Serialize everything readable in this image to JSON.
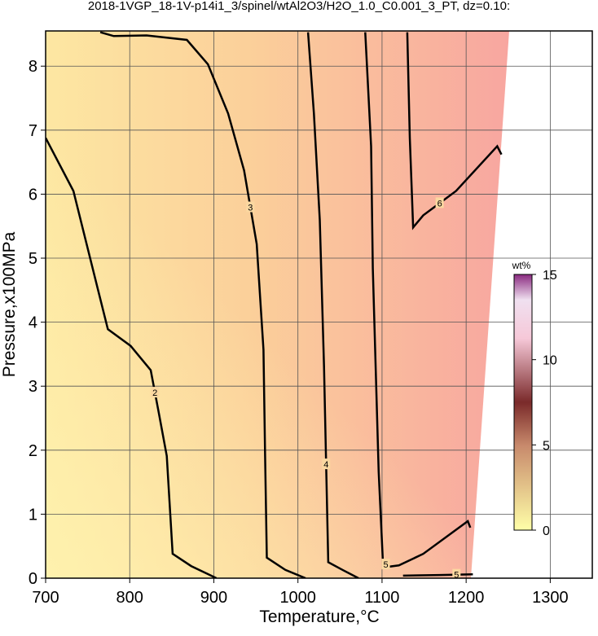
{
  "chart_data": {
    "type": "contour",
    "title": "2018-1VGP_18-1V-p14i1_3/spinel/wtAl2O3/H2O_1.0_C0.001_3_PT, dz=0.10:",
    "xlabel": "Temperature,°C",
    "ylabel": "Pressure,x100MPa",
    "xlim": [
      700,
      1350
    ],
    "ylim": [
      0,
      8.55
    ],
    "xticks": [
      700,
      800,
      900,
      1000,
      1100,
      1200,
      1300
    ],
    "yticks": [
      0,
      1,
      2,
      3,
      4,
      5,
      6,
      7,
      8
    ],
    "grid": true,
    "colorbar": {
      "label": "wt%",
      "lim": [
        0,
        15
      ],
      "ticks": [
        0,
        5,
        10,
        15
      ]
    },
    "contours": [
      {
        "label": "2",
        "level": 2,
        "x": [
          700,
          733,
          762,
          774,
          801,
          825,
          835,
          844,
          851,
          873,
          903
        ],
        "y": [
          6.88,
          6.05,
          4.52,
          3.89,
          3.63,
          3.25,
          2.55,
          1.91,
          0.38,
          0.19,
          0
        ]
      },
      {
        "label": "3",
        "level": 3,
        "x": [
          765,
          781,
          820,
          868,
          893,
          917,
          936,
          951,
          959,
          961,
          963,
          985,
          1009
        ],
        "y": [
          8.53,
          8.47,
          8.48,
          8.41,
          8.03,
          7.26,
          6.37,
          5.22,
          3.57,
          1.91,
          0.32,
          0.13,
          0
        ]
      },
      {
        "label": "4",
        "level": 4,
        "x": [
          1012,
          1019,
          1026,
          1031,
          1036,
          1053,
          1072
        ],
        "y": [
          8.53,
          7.26,
          5.6,
          3.31,
          0.25,
          0.13,
          0
        ]
      },
      {
        "label": "5",
        "level": 5,
        "x": [
          1080,
          1087,
          1089,
          1096,
          1101,
          1108,
          1120,
          1149,
          1202,
          1205
        ],
        "y": [
          8.53,
          6.75,
          4.84,
          1.66,
          0.25,
          0.18,
          0.2,
          0.38,
          0.89,
          0.79
        ]
      },
      {
        "label": "5",
        "level": 5,
        "x": [
          1125,
          1169,
          1208
        ],
        "y": [
          0.04,
          0.05,
          0.06
        ]
      },
      {
        "label": "6",
        "level": 6,
        "x": [
          1130,
          1133,
          1137,
          1149,
          1188,
          1237,
          1242
        ],
        "y": [
          8.53,
          6.88,
          5.48,
          5.67,
          6.05,
          6.75,
          6.62
        ]
      }
    ]
  }
}
